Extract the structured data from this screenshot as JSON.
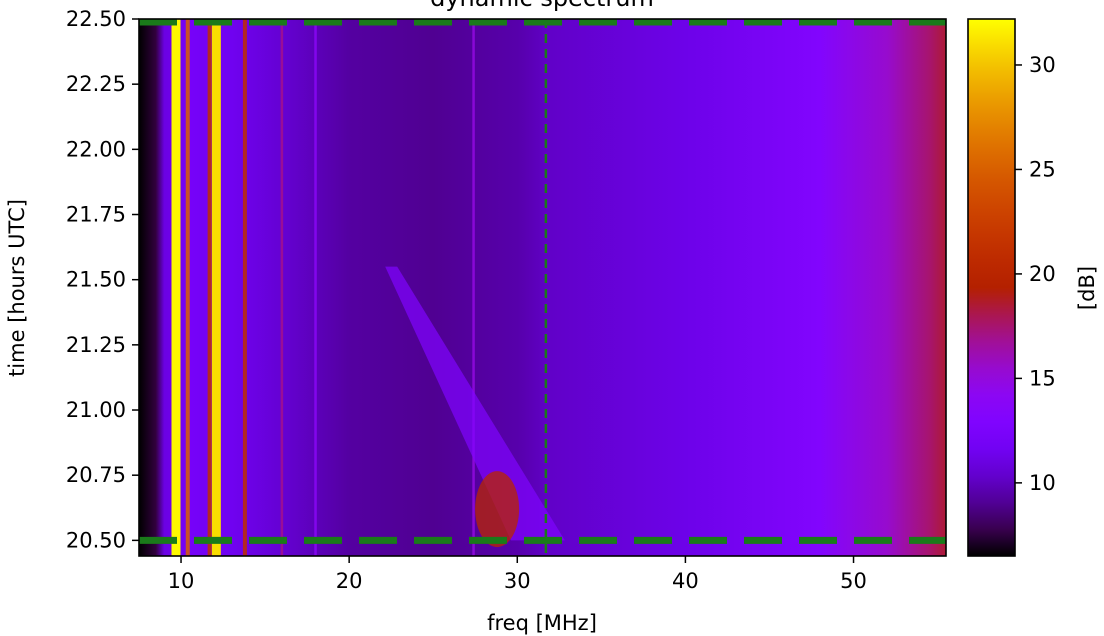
{
  "chart_data": {
    "type": "heatmap",
    "title": "dynamic spectrum",
    "xlabel": "freq [MHz]",
    "ylabel": "time [hours UTC]",
    "colorbar_label": "[dB]",
    "colormap": "gnuplot",
    "xlim": [
      7.5,
      55.5
    ],
    "ylim": [
      20.44,
      22.5
    ],
    "clim": [
      6.5,
      32.2
    ],
    "x_ticks": [
      10,
      20,
      30,
      40,
      50
    ],
    "x_tick_labels": [
      "10",
      "20",
      "30",
      "40",
      "50"
    ],
    "y_ticks": [
      20.5,
      20.75,
      21.0,
      21.25,
      21.5,
      21.75,
      22.0,
      22.25,
      22.5
    ],
    "y_tick_labels": [
      "20.50",
      "20.75",
      "21.00",
      "21.25",
      "21.50",
      "21.75",
      "22.00",
      "22.25",
      "22.50"
    ],
    "colorbar_ticks": [
      10,
      15,
      20,
      25,
      30
    ],
    "colorbar_tick_labels": [
      "10",
      "15",
      "20",
      "25",
      "30"
    ],
    "grid": false,
    "baseline_db": [
      {
        "freq": 7.5,
        "db": 6.5
      },
      {
        "freq": 8.5,
        "db": 7.5
      },
      {
        "freq": 9.0,
        "db": 11
      },
      {
        "freq": 10.5,
        "db": 12
      },
      {
        "freq": 13,
        "db": 11.5
      },
      {
        "freq": 16,
        "db": 10.5
      },
      {
        "freq": 20,
        "db": 9.3
      },
      {
        "freq": 25,
        "db": 9.0
      },
      {
        "freq": 30,
        "db": 9.5
      },
      {
        "freq": 32,
        "db": 10.2
      },
      {
        "freq": 40,
        "db": 11.2
      },
      {
        "freq": 48,
        "db": 13.2
      },
      {
        "freq": 52,
        "db": 15.5
      },
      {
        "freq": 54.5,
        "db": 17.5
      },
      {
        "freq": 55.5,
        "db": 18.5
      }
    ],
    "bright_lines": [
      {
        "freq": 9.7,
        "db": 32
      },
      {
        "freq": 10.4,
        "db": 25
      },
      {
        "freq": 12.1,
        "db": 31
      },
      {
        "freq": 11.7,
        "db": 21
      },
      {
        "freq": 13.8,
        "db": 21
      },
      {
        "freq": 16.0,
        "db": 17
      },
      {
        "freq": 18.0,
        "db": 14
      },
      {
        "freq": 27.4,
        "db": 15
      }
    ],
    "burst_feature": {
      "time_start": 21.55,
      "freq_start": 22.5,
      "time_end": 20.5,
      "freq_end": 32.0,
      "peak_db": 20
    },
    "overlays": {
      "color": "#1a7a1a",
      "horizontal_dashed_lines_time": [
        22.5,
        20.5
      ],
      "vertical_dashed_line_freq": 31.7
    }
  }
}
